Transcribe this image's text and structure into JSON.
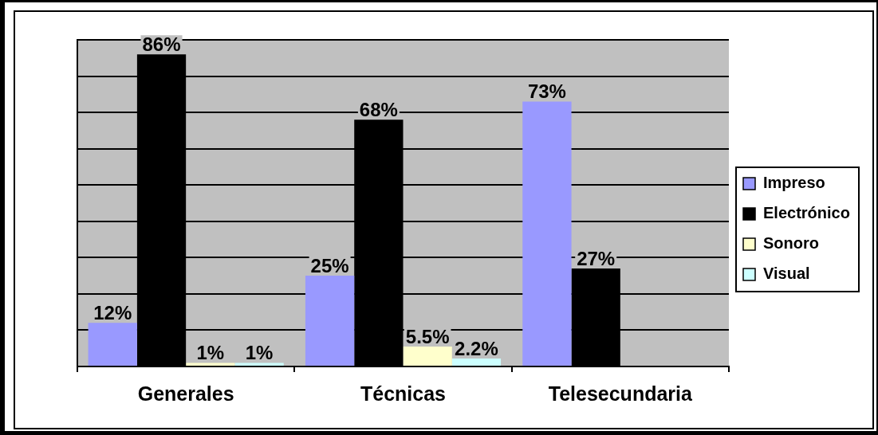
{
  "chart_data": {
    "type": "bar",
    "categories": [
      "Generales",
      "Técnicas",
      "Telesecundaria"
    ],
    "series": [
      {
        "name": "Impreso",
        "color": "#9999ff",
        "values": [
          12,
          25,
          73
        ],
        "value_labels": [
          "12%",
          "25%",
          "73%"
        ]
      },
      {
        "name": "Electrónico",
        "color": "#000000",
        "values": [
          86,
          68,
          27
        ],
        "value_labels": [
          "86%",
          "68%",
          "27%"
        ]
      },
      {
        "name": "Sonoro",
        "color": "#ffffcc",
        "values": [
          1,
          5.5,
          null
        ],
        "value_labels": [
          "1%",
          "5.5%",
          null
        ]
      },
      {
        "name": "Visual",
        "color": "#ccffff",
        "values": [
          1,
          2.2,
          null
        ],
        "value_labels": [
          "1%",
          "2.2%",
          null
        ]
      }
    ],
    "ylim": [
      0,
      90
    ],
    "yticks": [
      {
        "value": 0,
        "label": null
      },
      {
        "value": 10,
        "label": null
      },
      {
        "value": 20,
        "label": null
      },
      {
        "value": 30,
        "label": null
      },
      {
        "value": 40,
        "label": null
      },
      {
        "value": 50,
        "label": null
      },
      {
        "value": 60,
        "label": null
      },
      {
        "value": 70,
        "label": null
      },
      {
        "value": 80,
        "label": null
      },
      {
        "value": 90,
        "label": null
      }
    ],
    "grid": "y",
    "legend": "right",
    "tick_labels": "x"
  }
}
